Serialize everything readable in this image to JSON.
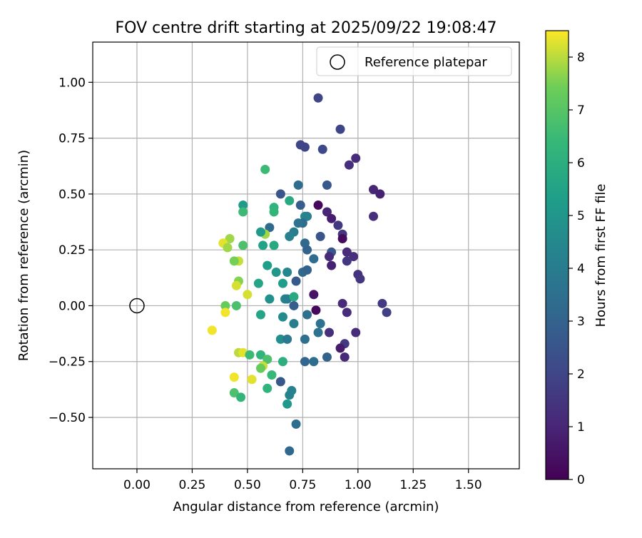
{
  "chart_data": {
    "type": "scatter",
    "title": "FOV centre drift starting at 2025/09/22 19:08:47",
    "xlabel": "Angular distance from reference (arcmin)",
    "ylabel": "Rotation from reference (arcmin)",
    "xlim": [
      -0.2,
      1.73
    ],
    "ylim": [
      -0.73,
      1.18
    ],
    "xticks": [
      0.0,
      0.25,
      0.5,
      0.75,
      1.0,
      1.25,
      1.5
    ],
    "xtick_labels": [
      "0.00",
      "0.25",
      "0.50",
      "0.75",
      "1.00",
      "1.25",
      "1.50"
    ],
    "yticks": [
      -0.5,
      -0.25,
      0.0,
      0.25,
      0.5,
      0.75,
      1.0
    ],
    "ytick_labels": [
      "−0.50",
      "−0.25",
      "0.00",
      "0.25",
      "0.50",
      "0.75",
      "1.00"
    ],
    "grid": true,
    "legend": {
      "position": "top-right",
      "label": "Reference platepar"
    },
    "reference_point": {
      "x": 0.0,
      "y": 0.0
    },
    "colorbar": {
      "label": "Hours from first FF file",
      "range": [
        0,
        8.5
      ],
      "ticks": [
        0,
        1,
        2,
        3,
        4,
        5,
        6,
        7,
        8
      ],
      "tick_labels": [
        "0",
        "1",
        "2",
        "3",
        "4",
        "5",
        "6",
        "7",
        "8"
      ],
      "colormap": "viridis"
    },
    "points": [
      {
        "x": 0.82,
        "y": 0.93,
        "c": 2.0
      },
      {
        "x": 0.92,
        "y": 0.79,
        "c": 2.0
      },
      {
        "x": 0.74,
        "y": 0.72,
        "c": 2.0
      },
      {
        "x": 0.76,
        "y": 0.71,
        "c": 2.0
      },
      {
        "x": 0.84,
        "y": 0.7,
        "c": 2.1
      },
      {
        "x": 0.99,
        "y": 0.66,
        "c": 1.2
      },
      {
        "x": 0.96,
        "y": 0.63,
        "c": 1.3
      },
      {
        "x": 0.58,
        "y": 0.61,
        "c": 6.5
      },
      {
        "x": 0.73,
        "y": 0.54,
        "c": 3.4
      },
      {
        "x": 0.86,
        "y": 0.54,
        "c": 2.6
      },
      {
        "x": 1.07,
        "y": 0.52,
        "c": 1.0
      },
      {
        "x": 1.1,
        "y": 0.5,
        "c": 0.9
      },
      {
        "x": 0.65,
        "y": 0.5,
        "c": 2.5
      },
      {
        "x": 0.69,
        "y": 0.47,
        "c": 5.8
      },
      {
        "x": 0.48,
        "y": 0.45,
        "c": 5.2
      },
      {
        "x": 0.74,
        "y": 0.45,
        "c": 2.8
      },
      {
        "x": 0.62,
        "y": 0.44,
        "c": 6.2
      },
      {
        "x": 0.48,
        "y": 0.42,
        "c": 6.5
      },
      {
        "x": 0.62,
        "y": 0.42,
        "c": 6.3
      },
      {
        "x": 0.82,
        "y": 0.45,
        "c": 0.2
      },
      {
        "x": 0.86,
        "y": 0.42,
        "c": 1.0
      },
      {
        "x": 0.88,
        "y": 0.39,
        "c": 0.8
      },
      {
        "x": 1.07,
        "y": 0.4,
        "c": 1.3
      },
      {
        "x": 0.76,
        "y": 0.4,
        "c": 4.5
      },
      {
        "x": 0.77,
        "y": 0.4,
        "c": 4.2
      },
      {
        "x": 0.75,
        "y": 0.37,
        "c": 3.4
      },
      {
        "x": 0.73,
        "y": 0.37,
        "c": 3.6
      },
      {
        "x": 0.6,
        "y": 0.35,
        "c": 3.3
      },
      {
        "x": 0.91,
        "y": 0.36,
        "c": 1.6
      },
      {
        "x": 0.58,
        "y": 0.32,
        "c": 7.8
      },
      {
        "x": 0.56,
        "y": 0.33,
        "c": 5.2
      },
      {
        "x": 0.42,
        "y": 0.3,
        "c": 7.8
      },
      {
        "x": 0.39,
        "y": 0.28,
        "c": 8.3
      },
      {
        "x": 0.71,
        "y": 0.33,
        "c": 4.0
      },
      {
        "x": 0.69,
        "y": 0.31,
        "c": 4.2
      },
      {
        "x": 0.83,
        "y": 0.31,
        "c": 2.5
      },
      {
        "x": 0.93,
        "y": 0.32,
        "c": 1.5
      },
      {
        "x": 0.93,
        "y": 0.3,
        "c": 0.3
      },
      {
        "x": 0.41,
        "y": 0.26,
        "c": 7.8
      },
      {
        "x": 0.48,
        "y": 0.27,
        "c": 6.8
      },
      {
        "x": 0.57,
        "y": 0.27,
        "c": 5.5
      },
      {
        "x": 0.62,
        "y": 0.27,
        "c": 5.8
      },
      {
        "x": 0.76,
        "y": 0.28,
        "c": 3.2
      },
      {
        "x": 0.77,
        "y": 0.25,
        "c": 3.0
      },
      {
        "x": 0.88,
        "y": 0.24,
        "c": 2.6
      },
      {
        "x": 0.95,
        "y": 0.24,
        "c": 1.2
      },
      {
        "x": 0.87,
        "y": 0.22,
        "c": 1.2
      },
      {
        "x": 0.98,
        "y": 0.22,
        "c": 1.3
      },
      {
        "x": 0.95,
        "y": 0.2,
        "c": 1.5
      },
      {
        "x": 0.46,
        "y": 0.2,
        "c": 8.1
      },
      {
        "x": 0.44,
        "y": 0.2,
        "c": 7.5
      },
      {
        "x": 0.8,
        "y": 0.21,
        "c": 3.4
      },
      {
        "x": 0.88,
        "y": 0.18,
        "c": 0.9
      },
      {
        "x": 0.59,
        "y": 0.18,
        "c": 5.3
      },
      {
        "x": 0.63,
        "y": 0.15,
        "c": 5.0
      },
      {
        "x": 0.68,
        "y": 0.15,
        "c": 4.4
      },
      {
        "x": 0.75,
        "y": 0.15,
        "c": 3.2
      },
      {
        "x": 0.77,
        "y": 0.16,
        "c": 3.0
      },
      {
        "x": 1.0,
        "y": 0.14,
        "c": 1.4
      },
      {
        "x": 1.01,
        "y": 0.12,
        "c": 1.5
      },
      {
        "x": 0.46,
        "y": 0.11,
        "c": 7.6
      },
      {
        "x": 0.55,
        "y": 0.1,
        "c": 5.6
      },
      {
        "x": 0.66,
        "y": 0.1,
        "c": 5.3
      },
      {
        "x": 0.72,
        "y": 0.11,
        "c": 2.7
      },
      {
        "x": 0.45,
        "y": 0.09,
        "c": 8.2
      },
      {
        "x": 0.5,
        "y": 0.05,
        "c": 8.2
      },
      {
        "x": 0.6,
        "y": 0.03,
        "c": 4.8
      },
      {
        "x": 0.67,
        "y": 0.03,
        "c": 4.3
      },
      {
        "x": 0.68,
        "y": 0.03,
        "c": 4.1
      },
      {
        "x": 0.71,
        "y": 0.04,
        "c": 5.8
      },
      {
        "x": 0.8,
        "y": 0.05,
        "c": 0.5
      },
      {
        "x": 0.93,
        "y": 0.01,
        "c": 1.2
      },
      {
        "x": 1.11,
        "y": 0.01,
        "c": 1.6
      },
      {
        "x": 0.4,
        "y": 0.0,
        "c": 7.3
      },
      {
        "x": 0.45,
        "y": 0.0,
        "c": 6.8
      },
      {
        "x": 0.71,
        "y": 0.0,
        "c": 2.8
      },
      {
        "x": 0.81,
        "y": -0.02,
        "c": 0.2
      },
      {
        "x": 0.4,
        "y": -0.03,
        "c": 8.4
      },
      {
        "x": 0.77,
        "y": -0.04,
        "c": 3.5
      },
      {
        "x": 0.95,
        "y": -0.03,
        "c": 1.2
      },
      {
        "x": 1.13,
        "y": -0.03,
        "c": 1.8
      },
      {
        "x": 0.56,
        "y": -0.04,
        "c": 5.6
      },
      {
        "x": 0.66,
        "y": -0.05,
        "c": 4.6
      },
      {
        "x": 0.71,
        "y": -0.08,
        "c": 4.1
      },
      {
        "x": 0.83,
        "y": -0.08,
        "c": 3.6
      },
      {
        "x": 0.34,
        "y": -0.11,
        "c": 8.4
      },
      {
        "x": 0.82,
        "y": -0.12,
        "c": 3.6
      },
      {
        "x": 0.87,
        "y": -0.12,
        "c": 1.3
      },
      {
        "x": 0.99,
        "y": -0.12,
        "c": 1.2
      },
      {
        "x": 0.65,
        "y": -0.15,
        "c": 4.7
      },
      {
        "x": 0.68,
        "y": -0.15,
        "c": 3.9
      },
      {
        "x": 0.76,
        "y": -0.15,
        "c": 3.5
      },
      {
        "x": 0.94,
        "y": -0.17,
        "c": 1.6
      },
      {
        "x": 0.92,
        "y": -0.19,
        "c": 0.7
      },
      {
        "x": 0.46,
        "y": -0.21,
        "c": 8.0
      },
      {
        "x": 0.48,
        "y": -0.21,
        "c": 8.3
      },
      {
        "x": 0.51,
        "y": -0.22,
        "c": 6.5
      },
      {
        "x": 0.56,
        "y": -0.22,
        "c": 6.2
      },
      {
        "x": 0.86,
        "y": -0.23,
        "c": 3.0
      },
      {
        "x": 0.94,
        "y": -0.23,
        "c": 1.1
      },
      {
        "x": 0.59,
        "y": -0.24,
        "c": 6.8
      },
      {
        "x": 0.66,
        "y": -0.25,
        "c": 6.0
      },
      {
        "x": 0.76,
        "y": -0.25,
        "c": 3.1
      },
      {
        "x": 0.8,
        "y": -0.25,
        "c": 3.4
      },
      {
        "x": 0.57,
        "y": -0.27,
        "c": 8.1
      },
      {
        "x": 0.56,
        "y": -0.28,
        "c": 7.3
      },
      {
        "x": 0.44,
        "y": -0.32,
        "c": 8.4
      },
      {
        "x": 0.52,
        "y": -0.33,
        "c": 8.3
      },
      {
        "x": 0.61,
        "y": -0.31,
        "c": 6.4
      },
      {
        "x": 0.65,
        "y": -0.34,
        "c": 2.6
      },
      {
        "x": 0.44,
        "y": -0.39,
        "c": 6.8
      },
      {
        "x": 0.47,
        "y": -0.41,
        "c": 6.3
      },
      {
        "x": 0.59,
        "y": -0.37,
        "c": 6.2
      },
      {
        "x": 0.7,
        "y": -0.38,
        "c": 4.2
      },
      {
        "x": 0.69,
        "y": -0.4,
        "c": 4.3
      },
      {
        "x": 0.68,
        "y": -0.44,
        "c": 5.1
      },
      {
        "x": 0.72,
        "y": -0.53,
        "c": 3.4
      },
      {
        "x": 0.69,
        "y": -0.65,
        "c": 3.2
      }
    ]
  }
}
